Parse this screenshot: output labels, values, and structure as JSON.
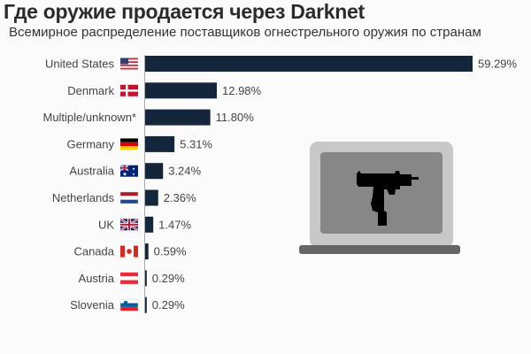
{
  "chart_data": {
    "type": "bar",
    "orientation": "horizontal",
    "title": "Где оружие продается через Darknet",
    "subtitle": "Всемирное распределение поставщиков огнестрельного оружия по странам",
    "categories": [
      "United States",
      "Denmark",
      "Multiple/unknown*",
      "Germany",
      "Australia",
      "Netherlands",
      "UK",
      "Canada",
      "Austria",
      "Slovenia"
    ],
    "values": [
      59.29,
      12.98,
      11.8,
      5.31,
      3.24,
      2.36,
      1.47,
      0.59,
      0.29,
      0.29
    ],
    "value_labels": [
      "59.29%",
      "12.98%",
      "11.80%",
      "5.31%",
      "3.24%",
      "2.36%",
      "1.47%",
      "0.59%",
      "0.29%",
      "0.29%"
    ],
    "flags": [
      "us-flag-icon",
      "denmark-flag-icon",
      "",
      "germany-flag-icon",
      "australia-flag-icon",
      "netherlands-flag-icon",
      "uk-flag-icon",
      "canada-flag-icon",
      "austria-flag-icon",
      "slovenia-flag-icon"
    ],
    "bar_color": "#14263a",
    "xlim": [
      0,
      60
    ],
    "grid": false,
    "illustration": "laptop-with-submachine-gun-icon"
  }
}
